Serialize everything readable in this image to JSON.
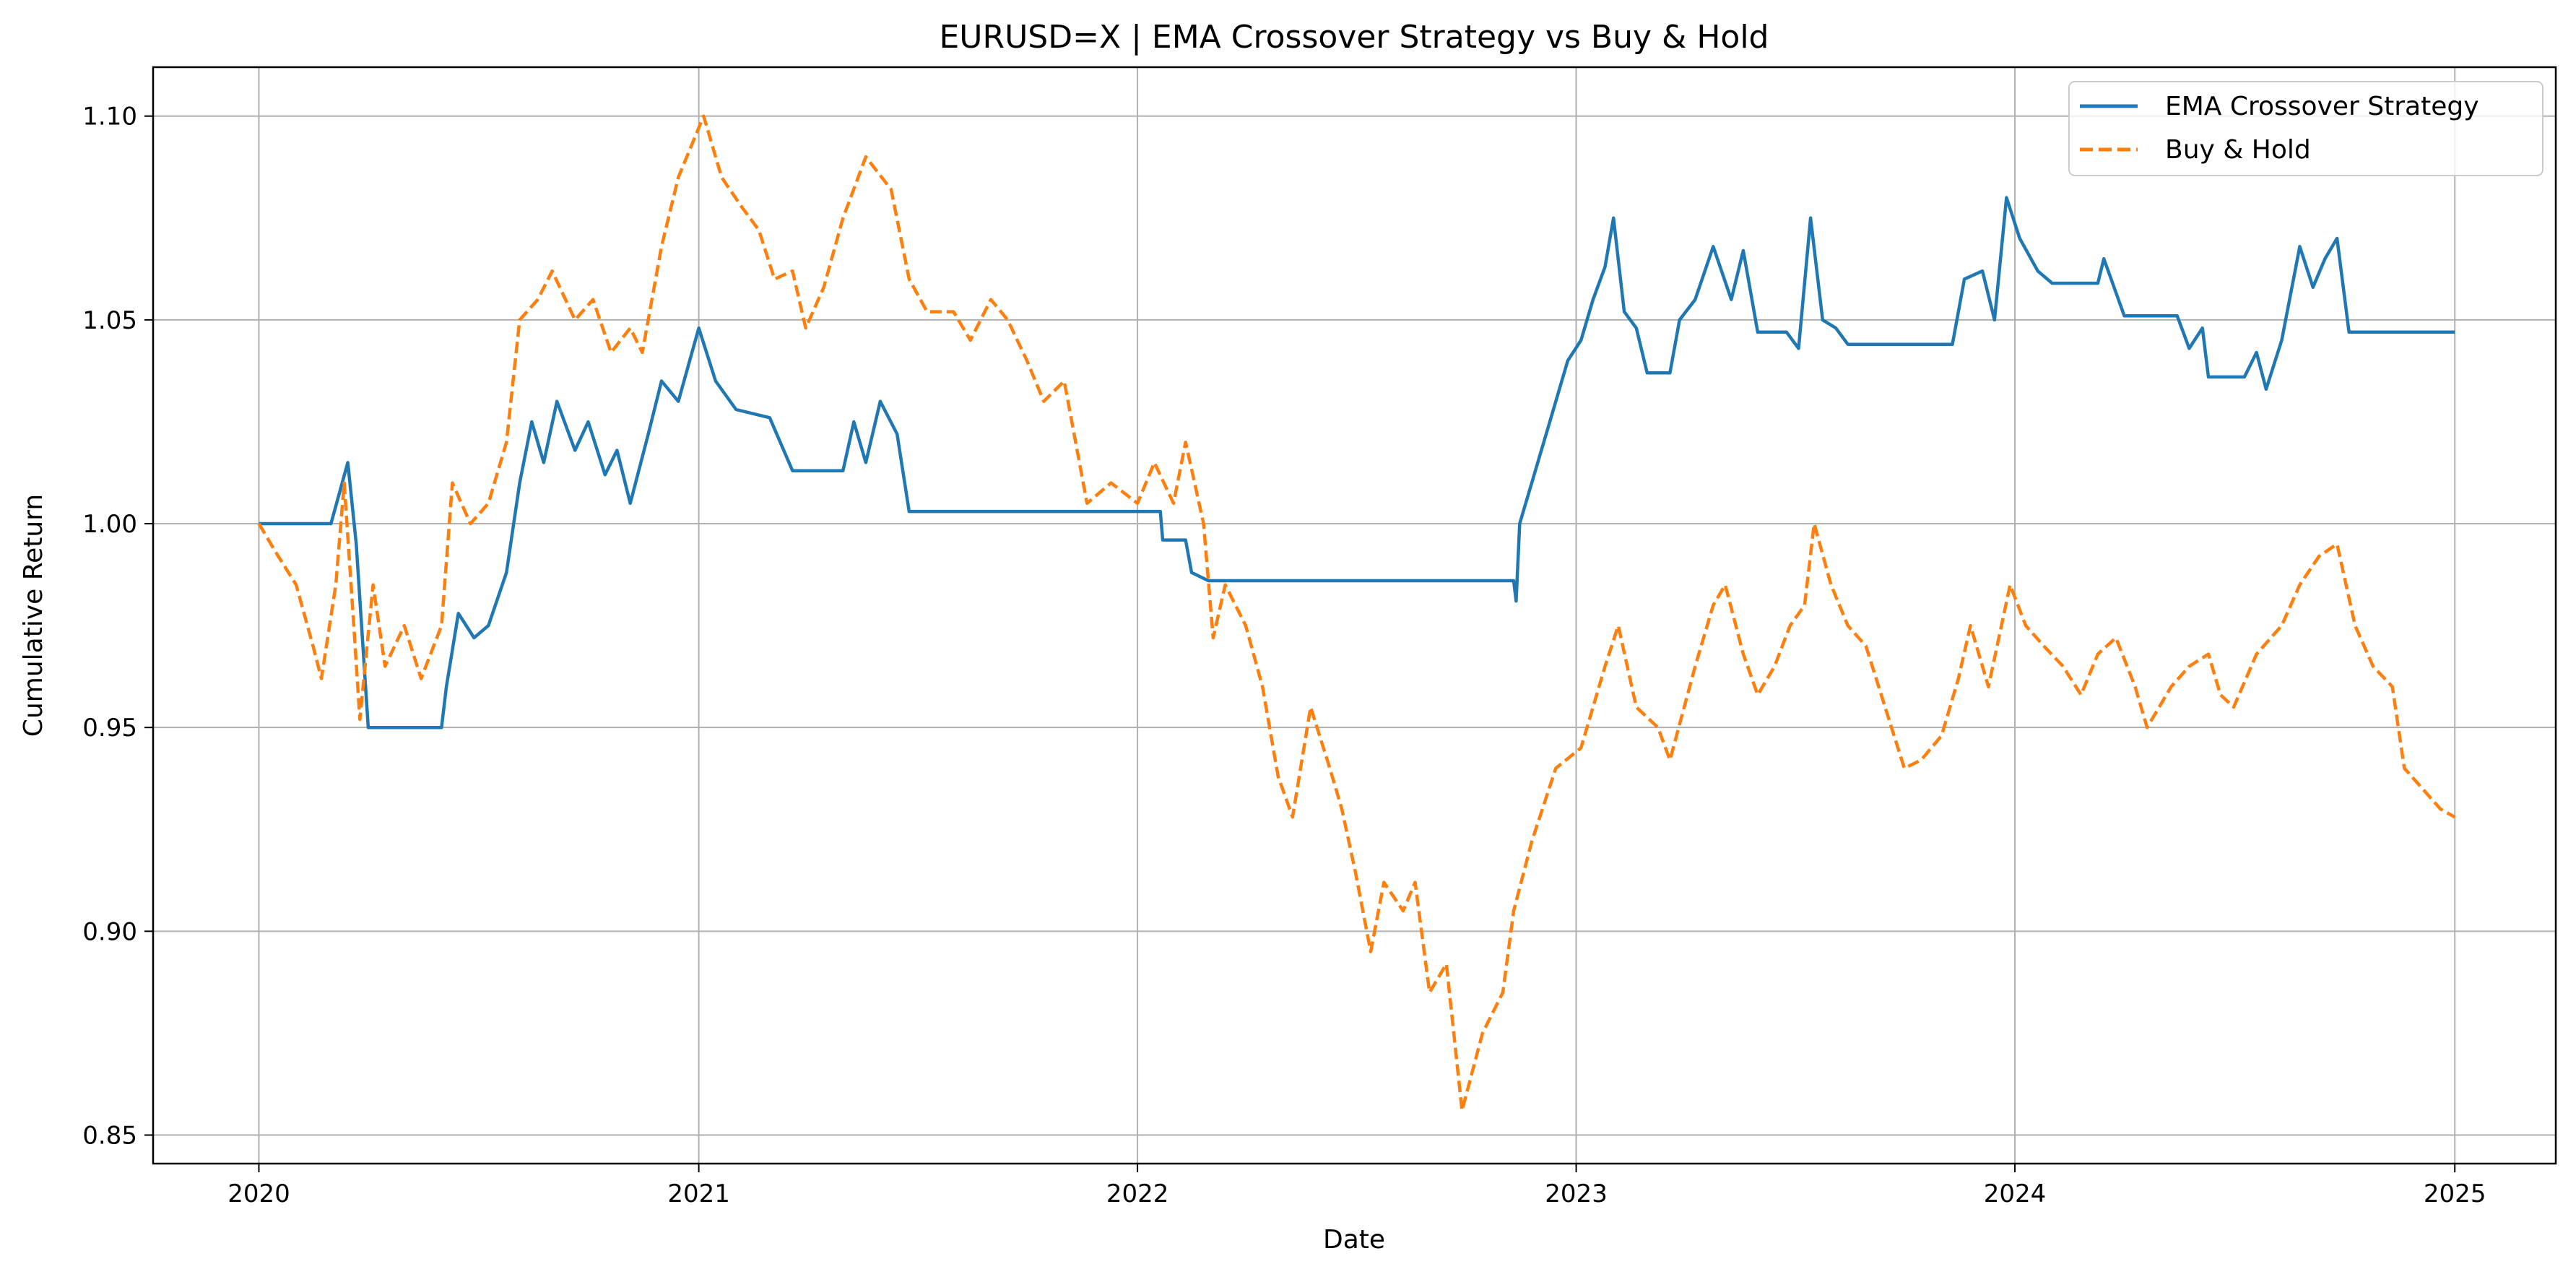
{
  "chart_data": {
    "type": "line",
    "title": "EURUSD=X | EMA Crossover Strategy vs Buy & Hold",
    "xlabel": "Date",
    "ylabel": "Cumulative Return",
    "xlim": [
      "2019-10-05",
      "2025-03-26"
    ],
    "ylim": [
      0.843,
      1.112
    ],
    "xticks": [
      {
        "date": "2020-01-01",
        "label": "2020"
      },
      {
        "date": "2021-01-01",
        "label": "2021"
      },
      {
        "date": "2022-01-01",
        "label": "2022"
      },
      {
        "date": "2023-01-01",
        "label": "2023"
      },
      {
        "date": "2024-01-01",
        "label": "2024"
      },
      {
        "date": "2025-01-01",
        "label": "2025"
      }
    ],
    "yticks": [
      {
        "value": 0.85,
        "label": "0.85"
      },
      {
        "value": 0.9,
        "label": "0.90"
      },
      {
        "value": 0.95,
        "label": "0.95"
      },
      {
        "value": 1.0,
        "label": "1.00"
      },
      {
        "value": 1.05,
        "label": "1.05"
      },
      {
        "value": 1.1,
        "label": "1.10"
      }
    ],
    "grid": true,
    "legend_position": "top-right",
    "series": [
      {
        "name": "EMA Crossover Strategy",
        "color": "#1f77b4",
        "dash": "solid",
        "points": [
          [
            "2020-01-01",
            1.0
          ],
          [
            "2020-03-01",
            1.0
          ],
          [
            "2020-03-15",
            1.015
          ],
          [
            "2020-03-22",
            0.995
          ],
          [
            "2020-04-01",
            0.95
          ],
          [
            "2020-06-01",
            0.95
          ],
          [
            "2020-06-05",
            0.96
          ],
          [
            "2020-06-15",
            0.978
          ],
          [
            "2020-06-28",
            0.972
          ],
          [
            "2020-07-10",
            0.975
          ],
          [
            "2020-07-25",
            0.988
          ],
          [
            "2020-08-05",
            1.01
          ],
          [
            "2020-08-15",
            1.025
          ],
          [
            "2020-08-25",
            1.015
          ],
          [
            "2020-09-05",
            1.03
          ],
          [
            "2020-09-20",
            1.018
          ],
          [
            "2020-10-01",
            1.025
          ],
          [
            "2020-10-15",
            1.012
          ],
          [
            "2020-10-25",
            1.018
          ],
          [
            "2020-11-05",
            1.005
          ],
          [
            "2020-11-20",
            1.022
          ],
          [
            "2020-12-01",
            1.035
          ],
          [
            "2020-12-15",
            1.03
          ],
          [
            "2021-01-01",
            1.048
          ],
          [
            "2021-01-15",
            1.035
          ],
          [
            "2021-02-01",
            1.028
          ],
          [
            "2021-03-01",
            1.026
          ],
          [
            "2021-03-20",
            1.013
          ],
          [
            "2021-05-01",
            1.013
          ],
          [
            "2021-05-10",
            1.025
          ],
          [
            "2021-05-20",
            1.015
          ],
          [
            "2021-06-01",
            1.03
          ],
          [
            "2021-06-15",
            1.022
          ],
          [
            "2021-06-25",
            1.003
          ],
          [
            "2021-12-01",
            1.003
          ],
          [
            "2022-01-01",
            1.003
          ],
          [
            "2022-01-20",
            1.003
          ],
          [
            "2022-01-22",
            0.996
          ],
          [
            "2022-02-10",
            0.996
          ],
          [
            "2022-02-15",
            0.988
          ],
          [
            "2022-03-01",
            0.986
          ],
          [
            "2022-11-10",
            0.986
          ],
          [
            "2022-11-12",
            0.981
          ],
          [
            "2022-11-15",
            1.0
          ],
          [
            "2022-11-25",
            1.01
          ],
          [
            "2022-12-10",
            1.025
          ],
          [
            "2022-12-25",
            1.04
          ],
          [
            "2023-01-05",
            1.045
          ],
          [
            "2023-01-15",
            1.055
          ],
          [
            "2023-01-25",
            1.063
          ],
          [
            "2023-02-01",
            1.075
          ],
          [
            "2023-02-10",
            1.052
          ],
          [
            "2023-02-20",
            1.048
          ],
          [
            "2023-03-01",
            1.037
          ],
          [
            "2023-03-20",
            1.037
          ],
          [
            "2023-03-28",
            1.05
          ],
          [
            "2023-04-10",
            1.055
          ],
          [
            "2023-04-25",
            1.068
          ],
          [
            "2023-05-10",
            1.055
          ],
          [
            "2023-05-20",
            1.067
          ],
          [
            "2023-06-01",
            1.047
          ],
          [
            "2023-06-25",
            1.047
          ],
          [
            "2023-07-05",
            1.043
          ],
          [
            "2023-07-15",
            1.075
          ],
          [
            "2023-07-25",
            1.05
          ],
          [
            "2023-08-05",
            1.048
          ],
          [
            "2023-08-15",
            1.044
          ],
          [
            "2023-11-10",
            1.044
          ],
          [
            "2023-11-20",
            1.06
          ],
          [
            "2023-12-05",
            1.062
          ],
          [
            "2023-12-15",
            1.05
          ],
          [
            "2023-12-25",
            1.08
          ],
          [
            "2024-01-05",
            1.07
          ],
          [
            "2024-01-20",
            1.062
          ],
          [
            "2024-02-01",
            1.059
          ],
          [
            "2024-03-10",
            1.059
          ],
          [
            "2024-03-15",
            1.065
          ],
          [
            "2024-04-01",
            1.051
          ],
          [
            "2024-05-15",
            1.051
          ],
          [
            "2024-05-25",
            1.043
          ],
          [
            "2024-06-05",
            1.048
          ],
          [
            "2024-06-10",
            1.036
          ],
          [
            "2024-07-10",
            1.036
          ],
          [
            "2024-07-20",
            1.042
          ],
          [
            "2024-07-28",
            1.033
          ],
          [
            "2024-08-10",
            1.045
          ],
          [
            "2024-08-25",
            1.068
          ],
          [
            "2024-09-05",
            1.058
          ],
          [
            "2024-09-15",
            1.065
          ],
          [
            "2024-09-25",
            1.07
          ],
          [
            "2024-10-05",
            1.047
          ],
          [
            "2025-01-01",
            1.047
          ]
        ]
      },
      {
        "name": "Buy & Hold",
        "color": "#ff7f0e",
        "dash": "dashed",
        "points": [
          [
            "2020-01-01",
            1.0
          ],
          [
            "2020-01-15",
            0.993
          ],
          [
            "2020-02-01",
            0.985
          ],
          [
            "2020-02-15",
            0.97
          ],
          [
            "2020-02-22",
            0.962
          ],
          [
            "2020-03-05",
            0.985
          ],
          [
            "2020-03-12",
            1.01
          ],
          [
            "2020-03-20",
            0.975
          ],
          [
            "2020-03-25",
            0.952
          ],
          [
            "2020-04-05",
            0.985
          ],
          [
            "2020-04-15",
            0.965
          ],
          [
            "2020-05-01",
            0.975
          ],
          [
            "2020-05-15",
            0.962
          ],
          [
            "2020-06-01",
            0.975
          ],
          [
            "2020-06-10",
            1.01
          ],
          [
            "2020-06-25",
            1.0
          ],
          [
            "2020-07-10",
            1.005
          ],
          [
            "2020-07-25",
            1.02
          ],
          [
            "2020-08-05",
            1.05
          ],
          [
            "2020-08-20",
            1.055
          ],
          [
            "2020-09-01",
            1.062
          ],
          [
            "2020-09-20",
            1.05
          ],
          [
            "2020-10-05",
            1.055
          ],
          [
            "2020-10-20",
            1.042
          ],
          [
            "2020-11-05",
            1.048
          ],
          [
            "2020-11-15",
            1.042
          ],
          [
            "2020-12-01",
            1.068
          ],
          [
            "2020-12-15",
            1.085
          ],
          [
            "2021-01-05",
            1.1
          ],
          [
            "2021-01-20",
            1.085
          ],
          [
            "2021-02-05",
            1.078
          ],
          [
            "2021-02-20",
            1.072
          ],
          [
            "2021-03-05",
            1.06
          ],
          [
            "2021-03-20",
            1.062
          ],
          [
            "2021-03-31",
            1.048
          ],
          [
            "2021-04-15",
            1.058
          ],
          [
            "2021-05-01",
            1.075
          ],
          [
            "2021-05-20",
            1.09
          ],
          [
            "2021-06-10",
            1.082
          ],
          [
            "2021-06-25",
            1.06
          ],
          [
            "2021-07-10",
            1.052
          ],
          [
            "2021-08-01",
            1.052
          ],
          [
            "2021-08-15",
            1.045
          ],
          [
            "2021-09-01",
            1.055
          ],
          [
            "2021-09-15",
            1.05
          ],
          [
            "2021-10-01",
            1.04
          ],
          [
            "2021-10-15",
            1.03
          ],
          [
            "2021-11-01",
            1.035
          ],
          [
            "2021-11-20",
            1.005
          ],
          [
            "2021-12-10",
            1.01
          ],
          [
            "2022-01-01",
            1.005
          ],
          [
            "2022-01-15",
            1.015
          ],
          [
            "2022-01-31",
            1.005
          ],
          [
            "2022-02-10",
            1.02
          ],
          [
            "2022-02-25",
            1.0
          ],
          [
            "2022-03-05",
            0.972
          ],
          [
            "2022-03-15",
            0.985
          ],
          [
            "2022-04-01",
            0.975
          ],
          [
            "2022-04-15",
            0.96
          ],
          [
            "2022-04-28",
            0.938
          ],
          [
            "2022-05-10",
            0.928
          ],
          [
            "2022-05-25",
            0.955
          ],
          [
            "2022-06-10",
            0.94
          ],
          [
            "2022-06-20",
            0.93
          ],
          [
            "2022-07-01",
            0.915
          ],
          [
            "2022-07-14",
            0.895
          ],
          [
            "2022-07-25",
            0.912
          ],
          [
            "2022-08-10",
            0.905
          ],
          [
            "2022-08-20",
            0.912
          ],
          [
            "2022-09-01",
            0.885
          ],
          [
            "2022-09-15",
            0.892
          ],
          [
            "2022-09-28",
            0.856
          ],
          [
            "2022-10-15",
            0.875
          ],
          [
            "2022-11-01",
            0.885
          ],
          [
            "2022-11-10",
            0.905
          ],
          [
            "2022-11-25",
            0.922
          ],
          [
            "2022-12-15",
            0.94
          ],
          [
            "2023-01-05",
            0.945
          ],
          [
            "2023-01-25",
            0.965
          ],
          [
            "2023-02-05",
            0.975
          ],
          [
            "2023-02-20",
            0.955
          ],
          [
            "2023-03-10",
            0.95
          ],
          [
            "2023-03-20",
            0.942
          ],
          [
            "2023-04-10",
            0.965
          ],
          [
            "2023-04-25",
            0.98
          ],
          [
            "2023-05-05",
            0.985
          ],
          [
            "2023-05-20",
            0.968
          ],
          [
            "2023-06-01",
            0.958
          ],
          [
            "2023-06-15",
            0.965
          ],
          [
            "2023-06-28",
            0.975
          ],
          [
            "2023-07-10",
            0.98
          ],
          [
            "2023-07-18",
            1.0
          ],
          [
            "2023-08-01",
            0.985
          ],
          [
            "2023-08-15",
            0.975
          ],
          [
            "2023-08-30",
            0.97
          ],
          [
            "2023-09-15",
            0.955
          ],
          [
            "2023-10-01",
            0.94
          ],
          [
            "2023-10-15",
            0.942
          ],
          [
            "2023-11-01",
            0.948
          ],
          [
            "2023-11-15",
            0.962
          ],
          [
            "2023-11-25",
            0.975
          ],
          [
            "2023-12-10",
            0.96
          ],
          [
            "2023-12-28",
            0.985
          ],
          [
            "2024-01-10",
            0.975
          ],
          [
            "2024-01-25",
            0.97
          ],
          [
            "2024-02-10",
            0.965
          ],
          [
            "2024-02-25",
            0.958
          ],
          [
            "2024-03-10",
            0.968
          ],
          [
            "2024-03-25",
            0.972
          ],
          [
            "2024-04-10",
            0.96
          ],
          [
            "2024-04-20",
            0.95
          ],
          [
            "2024-05-10",
            0.96
          ],
          [
            "2024-05-25",
            0.965
          ],
          [
            "2024-06-10",
            0.968
          ],
          [
            "2024-06-20",
            0.958
          ],
          [
            "2024-07-01",
            0.955
          ],
          [
            "2024-07-20",
            0.968
          ],
          [
            "2024-08-10",
            0.975
          ],
          [
            "2024-08-25",
            0.985
          ],
          [
            "2024-09-10",
            0.992
          ],
          [
            "2024-09-25",
            0.995
          ],
          [
            "2024-10-10",
            0.975
          ],
          [
            "2024-10-25",
            0.965
          ],
          [
            "2024-11-10",
            0.96
          ],
          [
            "2024-11-20",
            0.94
          ],
          [
            "2024-12-05",
            0.935
          ],
          [
            "2024-12-20",
            0.93
          ],
          [
            "2025-01-01",
            0.928
          ]
        ]
      }
    ]
  }
}
